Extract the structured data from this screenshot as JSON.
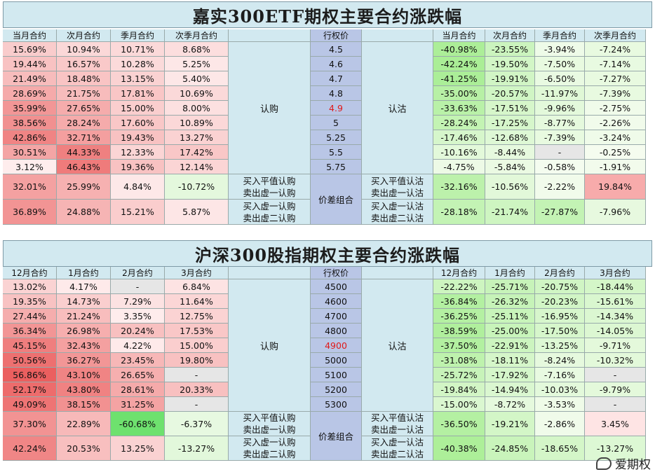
{
  "tables": [
    {
      "title": "嘉实300ETF期权主要合约涨跌幅",
      "call_headers": [
        "当月合约",
        "次月合约",
        "季月合约",
        "次季月合约"
      ],
      "strike_header": "行权价",
      "put_headers": [
        "当月合约",
        "次月合约",
        "季月合约",
        "次季月合约"
      ],
      "call_label": "认购",
      "put_label": "认沽",
      "atm_index": 4,
      "rows": [
        {
          "call": [
            "15.69%",
            "10.94%",
            "10.71%",
            "8.68%"
          ],
          "strike": "4.5",
          "put": [
            "-40.98%",
            "-23.55%",
            "-3.94%",
            "-7.24%"
          ]
        },
        {
          "call": [
            "19.44%",
            "16.57%",
            "10.28%",
            "5.25%"
          ],
          "strike": "4.6",
          "put": [
            "-42.24%",
            "-19.50%",
            "-7.50%",
            "-7.14%"
          ]
        },
        {
          "call": [
            "21.49%",
            "18.48%",
            "13.15%",
            "5.40%"
          ],
          "strike": "4.7",
          "put": [
            "-41.25%",
            "-19.91%",
            "-6.50%",
            "-7.27%"
          ]
        },
        {
          "call": [
            "28.69%",
            "21.75%",
            "17.81%",
            "10.69%"
          ],
          "strike": "4.8",
          "put": [
            "-35.00%",
            "-20.57%",
            "-11.97%",
            "-7.39%"
          ]
        },
        {
          "call": [
            "35.99%",
            "27.65%",
            "15.00%",
            "8.00%"
          ],
          "strike": "4.9",
          "put": [
            "-33.63%",
            "-17.51%",
            "-9.96%",
            "-2.75%"
          ]
        },
        {
          "call": [
            "38.56%",
            "28.24%",
            "17.60%",
            "10.89%"
          ],
          "strike": "5",
          "put": [
            "-28.24%",
            "-17.25%",
            "-8.77%",
            "-2.26%"
          ]
        },
        {
          "call": [
            "42.86%",
            "32.71%",
            "19.43%",
            "13.27%"
          ],
          "strike": "5.25",
          "put": [
            "-17.46%",
            "-12.68%",
            "-7.39%",
            "-3.24%"
          ]
        },
        {
          "call": [
            "30.51%",
            "44.33%",
            "12.33%",
            "17.42%"
          ],
          "strike": "5.5",
          "put": [
            "-10.16%",
            "-8.44%",
            "-",
            "-0.25%"
          ]
        },
        {
          "call": [
            "3.12%",
            "46.43%",
            "19.36%",
            "12.14%"
          ],
          "strike": "5.75",
          "put": [
            "-4.75%",
            "-5.84%",
            "-0.58%",
            "-1.91%"
          ]
        }
      ],
      "spread_label": "价差组合",
      "spreads": [
        {
          "call": [
            "32.01%",
            "25.99%",
            "4.84%",
            "-10.72%"
          ],
          "call_desc": [
            "买入平值认购",
            "卖出虚一认购"
          ],
          "put_desc": [
            "买入平值认沽",
            "卖出虚一认沽"
          ],
          "put": [
            "-32.16%",
            "-10.56%",
            "-2.22%",
            "19.84%"
          ]
        },
        {
          "call": [
            "36.89%",
            "24.88%",
            "15.21%",
            "5.87%"
          ],
          "call_desc": [
            "买入虚一认购",
            "卖出虚二认购"
          ],
          "put_desc": [
            "买入虚一认沽",
            "卖出虚二认沽"
          ],
          "put": [
            "-28.18%",
            "-21.74%",
            "-27.87%",
            "-7.96%"
          ]
        }
      ]
    },
    {
      "title": "沪深300股指期权主要合约涨跌幅",
      "call_headers": [
        "12月合约",
        "1月合约",
        "2月合约",
        "3月合约"
      ],
      "strike_header": "行权价",
      "put_headers": [
        "12月合约",
        "1月合约",
        "2月合约",
        "3月合约"
      ],
      "call_label": "认购",
      "put_label": "认沽",
      "atm_index": 4,
      "rows": [
        {
          "call": [
            "13.02%",
            "4.17%",
            "-",
            "6.84%"
          ],
          "strike": "4500",
          "put": [
            "-22.22%",
            "-25.71%",
            "-20.75%",
            "-18.44%"
          ]
        },
        {
          "call": [
            "19.35%",
            "14.73%",
            "7.29%",
            "11.64%"
          ],
          "strike": "4600",
          "put": [
            "-36.84%",
            "-26.32%",
            "-20.23%",
            "-15.61%"
          ]
        },
        {
          "call": [
            "27.44%",
            "21.24%",
            "3.35%",
            "12.75%"
          ],
          "strike": "4700",
          "put": [
            "-36.25%",
            "-25.11%",
            "-16.95%",
            "-14.34%"
          ]
        },
        {
          "call": [
            "36.34%",
            "26.98%",
            "20.24%",
            "17.53%"
          ],
          "strike": "4800",
          "put": [
            "-38.59%",
            "-25.00%",
            "-17.50%",
            "-14.05%"
          ]
        },
        {
          "call": [
            "45.15%",
            "32.43%",
            "4.22%",
            "15.00%"
          ],
          "strike": "4900",
          "put": [
            "-37.50%",
            "-22.91%",
            "-13.25%",
            "-9.71%"
          ]
        },
        {
          "call": [
            "50.56%",
            "36.27%",
            "23.45%",
            "19.80%"
          ],
          "strike": "5000",
          "put": [
            "-31.08%",
            "-18.11%",
            "-8.24%",
            "-10.32%"
          ]
        },
        {
          "call": [
            "56.86%",
            "43.10%",
            "26.65%",
            "-"
          ],
          "strike": "5100",
          "put": [
            "-25.72%",
            "-17.92%",
            "-7.16%",
            "-"
          ]
        },
        {
          "call": [
            "52.17%",
            "43.80%",
            "28.61%",
            "20.33%"
          ],
          "strike": "5200",
          "put": [
            "-19.84%",
            "-14.94%",
            "-10.03%",
            "-9.79%"
          ]
        },
        {
          "call": [
            "49.09%",
            "38.15%",
            "31.25%",
            "-"
          ],
          "strike": "5300",
          "put": [
            "-15.00%",
            "-8.72%",
            "-3.53%",
            "-"
          ]
        }
      ],
      "spread_label": "价差组合",
      "spreads": [
        {
          "call": [
            "37.30%",
            "22.89%",
            "-60.68%",
            "-6.37%"
          ],
          "call_desc": [
            "买入平值认购",
            "卖出虚一认购"
          ],
          "put_desc": [
            "买入平值认沽",
            "卖出虚一认沽"
          ],
          "put": [
            "-36.50%",
            "-19.21%",
            "-2.86%",
            "3.45%"
          ]
        },
        {
          "call": [
            "42.24%",
            "20.53%",
            "13.25%",
            "-13.27%"
          ],
          "call_desc": [
            "买入虚一认购",
            "卖出虚二认购"
          ],
          "put_desc": [
            "买入虚一认沽",
            "卖出虚二认沽"
          ],
          "put": [
            "-40.38%",
            "-24.85%",
            "-18.65%",
            "-13.27%"
          ]
        }
      ]
    }
  ],
  "watermark": "爱期权",
  "colors": {
    "header": "#d2e9f0",
    "strike": "#b9c6e6",
    "dash": "#e6e6e6",
    "atm_text": "#e01a1a"
  }
}
